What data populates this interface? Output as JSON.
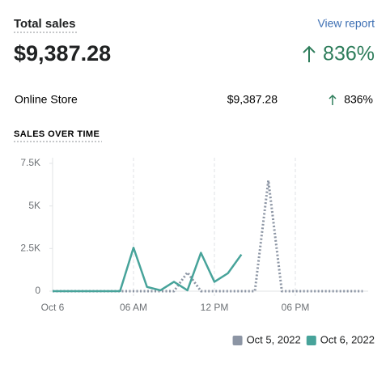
{
  "header": {
    "title": "Total sales",
    "link": "View report"
  },
  "summary": {
    "total": "$9,387.28",
    "change": "836%"
  },
  "breakdown": [
    {
      "channel": "Online Store",
      "sales": "$9,387.28",
      "change": "836%"
    }
  ],
  "chart_data": {
    "type": "line",
    "title": "SALES OVER TIME",
    "categories": [
      "Oct 6",
      null,
      null,
      null,
      null,
      null,
      "06 AM",
      null,
      null,
      null,
      null,
      null,
      "12 PM",
      null,
      null,
      null,
      null,
      null,
      "06 PM",
      null,
      null,
      null,
      null,
      null
    ],
    "series": [
      {
        "name": "Oct 5, 2022",
        "color": "#8c95a4",
        "line_style": "dotted",
        "values": [
          0,
          0,
          0,
          0,
          0,
          0,
          0,
          0,
          0,
          0,
          1100,
          0,
          0,
          0,
          0,
          0,
          6500,
          0,
          0,
          0,
          0,
          0,
          0,
          0
        ]
      },
      {
        "name": "Oct 6, 2022",
        "color": "#47a39a",
        "line_style": "solid",
        "values": [
          0,
          0,
          0,
          0,
          0,
          0,
          2550,
          250,
          50,
          550,
          50,
          2250,
          550,
          1050,
          2150,
          null,
          null,
          null,
          null,
          null,
          null,
          null,
          null,
          null
        ]
      }
    ],
    "ylim": [
      0,
      7500
    ],
    "yticks": [
      0,
      {
        "value": 2500,
        "label": "2.5K"
      },
      {
        "value": 5000,
        "label": "5K"
      },
      {
        "value": 7500,
        "label": "7.5K"
      }
    ],
    "grid": "x",
    "legend": "bottom-right"
  }
}
